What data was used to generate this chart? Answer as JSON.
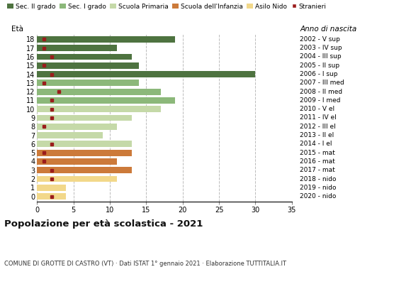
{
  "ages": [
    18,
    17,
    16,
    15,
    14,
    13,
    12,
    11,
    10,
    9,
    8,
    7,
    6,
    5,
    4,
    3,
    2,
    1,
    0
  ],
  "years": [
    "2002 - V sup",
    "2003 - IV sup",
    "2004 - III sup",
    "2005 - II sup",
    "2006 - I sup",
    "2007 - III med",
    "2008 - II med",
    "2009 - I med",
    "2010 - V el",
    "2011 - IV el",
    "2012 - III el",
    "2013 - II el",
    "2014 - I el",
    "2015 - mat",
    "2016 - mat",
    "2017 - mat",
    "2018 - nido",
    "2019 - nido",
    "2020 - nido"
  ],
  "values": [
    19,
    11,
    13,
    14,
    30,
    14,
    17,
    19,
    17,
    13,
    11,
    9,
    13,
    13,
    11,
    13,
    11,
    4,
    4
  ],
  "stranieri": [
    1,
    1,
    2,
    1,
    2,
    1,
    3,
    2,
    2,
    2,
    1,
    0,
    2,
    1,
    1,
    2,
    2,
    0,
    2
  ],
  "bar_colors": [
    "#4E7340",
    "#4E7340",
    "#4E7340",
    "#4E7340",
    "#4E7340",
    "#8CB87A",
    "#8CB87A",
    "#8CB87A",
    "#C5D9A8",
    "#C5D9A8",
    "#C5D9A8",
    "#C5D9A8",
    "#C5D9A8",
    "#CC7A3A",
    "#CC7A3A",
    "#CC7A3A",
    "#F2D88A",
    "#F2D88A",
    "#F2D88A"
  ],
  "legend_labels": [
    "Sec. II grado",
    "Sec. I grado",
    "Scuola Primaria",
    "Scuola dell'Infanzia",
    "Asilo Nido",
    "Stranieri"
  ],
  "legend_colors": [
    "#4E7340",
    "#8CB87A",
    "#C5D9A8",
    "#CC7A3A",
    "#F2D88A",
    "#9B1C1C"
  ],
  "stranieri_color": "#9B1C1C",
  "title": "Popolazione per età scolastica - 2021",
  "subtitle": "COMUNE DI GROTTE DI CASTRO (VT) · Dati ISTAT 1° gennaio 2021 · Elaborazione TUTTITALIA.IT",
  "ylabel": "Età",
  "right_label": "Anno di nascita",
  "xlim": [
    0,
    35
  ],
  "xticks": [
    0,
    5,
    10,
    15,
    20,
    25,
    30,
    35
  ],
  "bar_height": 0.72,
  "grid_color": "#BBBBBB",
  "bg_color": "#FFFFFF"
}
